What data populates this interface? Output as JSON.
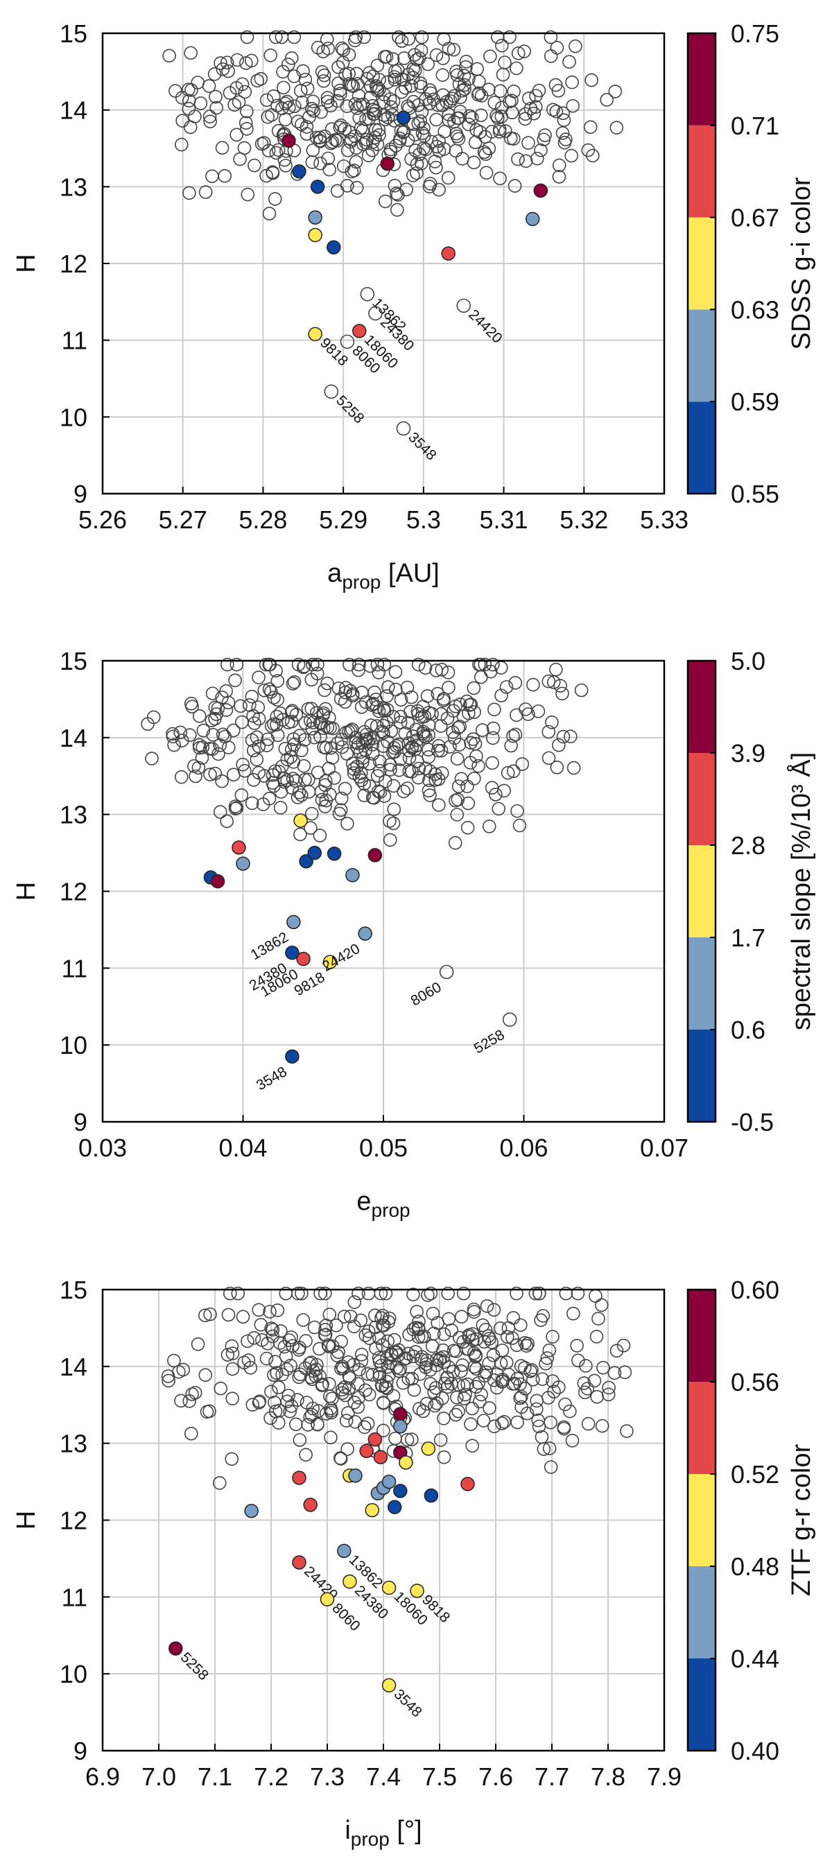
{
  "chart_data": [
    {
      "type": "scatter",
      "name": "aprop",
      "xlabel_main": "a",
      "xlabel_sub": "prop",
      "xlabel_unit": " [AU]",
      "ylabel": "H",
      "xlim": [
        5.26,
        5.33
      ],
      "ylim": [
        9,
        15
      ],
      "xticks": [
        "5.26",
        "5.27",
        "5.28",
        "5.29",
        "5.3",
        "5.31",
        "5.32",
        "5.33"
      ],
      "yticks": [
        "9",
        "10",
        "11",
        "12",
        "13",
        "14",
        "15"
      ],
      "colorbar": {
        "label": "SDSS g-i color",
        "ticks": [
          "0.55",
          "0.59",
          "0.63",
          "0.67",
          "0.71",
          "0.75"
        ],
        "colors": [
          "#0d47a1",
          "#7b9fc3",
          "#ffe95a",
          "#e54848",
          "#8b0038"
        ]
      },
      "labeled_points": [
        {
          "x": 5.2885,
          "y": 10.33,
          "label": "5258",
          "color": null
        },
        {
          "x": 5.2975,
          "y": 9.85,
          "label": "3548",
          "color": null
        },
        {
          "x": 5.2865,
          "y": 11.08,
          "label": "9818",
          "color": "#ffe95a"
        },
        {
          "x": 5.292,
          "y": 11.12,
          "label": "18060",
          "color": "#e54848"
        },
        {
          "x": 5.2905,
          "y": 10.98,
          "label": "8060",
          "color": null
        },
        {
          "x": 5.293,
          "y": 11.6,
          "label": "13862",
          "color": null
        },
        {
          "x": 5.294,
          "y": 11.35,
          "label": "24380",
          "color": null
        },
        {
          "x": 5.305,
          "y": 11.45,
          "label": "24420",
          "color": null
        }
      ],
      "colored_points": [
        {
          "x": 5.2832,
          "y": 13.6,
          "color": "#8b0038"
        },
        {
          "x": 5.2955,
          "y": 13.3,
          "color": "#8b0038"
        },
        {
          "x": 5.3146,
          "y": 12.95,
          "color": "#8b0038"
        },
        {
          "x": 5.3031,
          "y": 12.13,
          "color": "#e54848"
        },
        {
          "x": 5.2865,
          "y": 12.37,
          "color": "#ffe95a"
        },
        {
          "x": 5.2865,
          "y": 12.6,
          "color": "#7b9fc3"
        },
        {
          "x": 5.3136,
          "y": 12.58,
          "color": "#7b9fc3"
        },
        {
          "x": 5.2845,
          "y": 13.2,
          "color": "#0d47a1"
        },
        {
          "x": 5.2868,
          "y": 13.0,
          "color": "#0d47a1"
        },
        {
          "x": 5.2888,
          "y": 12.21,
          "color": "#0d47a1"
        },
        {
          "x": 5.2975,
          "y": 13.9,
          "color": "#0d47a1"
        }
      ],
      "background_points": {
        "count": 420,
        "x_range": [
          5.267,
          5.325
        ],
        "h_range": [
          12.1,
          14.95
        ],
        "h_mode": 14.0
      }
    },
    {
      "type": "scatter",
      "name": "eprop",
      "xlabel_main": "e",
      "xlabel_sub": "prop",
      "xlabel_unit": "",
      "ylabel": "H",
      "xlim": [
        0.03,
        0.07
      ],
      "ylim": [
        9,
        15
      ],
      "xticks": [
        "0.03",
        "0.04",
        "0.05",
        "0.06",
        "0.07"
      ],
      "yticks": [
        "9",
        "10",
        "11",
        "12",
        "13",
        "14",
        "15"
      ],
      "colorbar": {
        "label": "spectral slope [%/10³ Å]",
        "ticks": [
          "-0.5",
          "0.6",
          "1.7",
          "2.8",
          "3.9",
          "5.0"
        ],
        "colors": [
          "#0d47a1",
          "#7b9fc3",
          "#ffe95a",
          "#e54848",
          "#8b0038"
        ]
      },
      "labeled_points": [
        {
          "x": 0.0435,
          "y": 9.85,
          "label": "3548",
          "color": "#0d47a1"
        },
        {
          "x": 0.059,
          "y": 10.33,
          "label": "5258",
          "color": null
        },
        {
          "x": 0.0545,
          "y": 10.95,
          "label": "8060",
          "color": null
        },
        {
          "x": 0.0462,
          "y": 11.08,
          "label": "9818",
          "color": "#ffe95a"
        },
        {
          "x": 0.0443,
          "y": 11.12,
          "label": "18060",
          "color": "#e54848"
        },
        {
          "x": 0.0435,
          "y": 11.2,
          "label": "24380",
          "color": "#0d47a1"
        },
        {
          "x": 0.0436,
          "y": 11.6,
          "label": "13862",
          "color": "#7b9fc3"
        },
        {
          "x": 0.0487,
          "y": 11.45,
          "label": "24420",
          "color": "#7b9fc3"
        }
      ],
      "colored_points": [
        {
          "x": 0.0377,
          "y": 12.18,
          "color": "#0d47a1"
        },
        {
          "x": 0.0382,
          "y": 12.13,
          "color": "#8b0038"
        },
        {
          "x": 0.0397,
          "y": 12.57,
          "color": "#e54848"
        },
        {
          "x": 0.04,
          "y": 12.36,
          "color": "#7b9fc3"
        },
        {
          "x": 0.0441,
          "y": 12.92,
          "color": "#ffe95a"
        },
        {
          "x": 0.0445,
          "y": 12.39,
          "color": "#0d47a1"
        },
        {
          "x": 0.0451,
          "y": 12.5,
          "color": "#0d47a1"
        },
        {
          "x": 0.0465,
          "y": 12.49,
          "color": "#0d47a1"
        },
        {
          "x": 0.0478,
          "y": 12.21,
          "color": "#7b9fc3"
        },
        {
          "x": 0.0494,
          "y": 12.47,
          "color": "#8b0038"
        }
      ],
      "background_points": {
        "count": 430,
        "x_range": [
          0.0325,
          0.0655
        ],
        "h_range": [
          12.1,
          14.95
        ],
        "h_mode": 14.0
      }
    },
    {
      "type": "scatter",
      "name": "iprop",
      "xlabel_main": "i",
      "xlabel_sub": "prop",
      "xlabel_unit": " [°]",
      "ylabel": "H",
      "xlim": [
        6.9,
        7.9
      ],
      "ylim": [
        9,
        15
      ],
      "xticks": [
        "6.9",
        "7.0",
        "7.1",
        "7.2",
        "7.3",
        "7.4",
        "7.5",
        "7.6",
        "7.7",
        "7.8",
        "7.9"
      ],
      "yticks": [
        "9",
        "10",
        "11",
        "12",
        "13",
        "14",
        "15"
      ],
      "colorbar": {
        "label": "ZTF g-r color",
        "ticks": [
          "0.40",
          "0.44",
          "0.48",
          "0.52",
          "0.56",
          "0.60"
        ],
        "colors": [
          "#0d47a1",
          "#7b9fc3",
          "#ffe95a",
          "#e54848",
          "#8b0038"
        ]
      },
      "labeled_points": [
        {
          "x": 7.03,
          "y": 10.33,
          "label": "5258",
          "color": "#8b0038"
        },
        {
          "x": 7.41,
          "y": 9.85,
          "label": "3548",
          "color": "#ffe95a"
        },
        {
          "x": 7.25,
          "y": 11.45,
          "label": "24420",
          "color": "#e54848"
        },
        {
          "x": 7.3,
          "y": 10.97,
          "label": "8060",
          "color": "#ffe95a"
        },
        {
          "x": 7.33,
          "y": 11.6,
          "label": "13862",
          "color": "#7b9fc3"
        },
        {
          "x": 7.34,
          "y": 11.2,
          "label": "24380",
          "color": "#ffe95a"
        },
        {
          "x": 7.41,
          "y": 11.12,
          "label": "18060",
          "color": "#ffe95a"
        },
        {
          "x": 7.46,
          "y": 11.08,
          "label": "9818",
          "color": "#ffe95a"
        }
      ],
      "colored_points": [
        {
          "x": 7.43,
          "y": 13.38,
          "color": "#8b0038"
        },
        {
          "x": 7.43,
          "y": 12.88,
          "color": "#8b0038"
        },
        {
          "x": 7.385,
          "y": 13.05,
          "color": "#e54848"
        },
        {
          "x": 7.37,
          "y": 12.9,
          "color": "#e54848"
        },
        {
          "x": 7.395,
          "y": 12.82,
          "color": "#e54848"
        },
        {
          "x": 7.25,
          "y": 12.55,
          "color": "#e54848"
        },
        {
          "x": 7.27,
          "y": 12.2,
          "color": "#e54848"
        },
        {
          "x": 7.55,
          "y": 12.47,
          "color": "#e54848"
        },
        {
          "x": 7.34,
          "y": 12.58,
          "color": "#ffe95a"
        },
        {
          "x": 7.44,
          "y": 12.75,
          "color": "#ffe95a"
        },
        {
          "x": 7.48,
          "y": 12.93,
          "color": "#ffe95a"
        },
        {
          "x": 7.38,
          "y": 12.13,
          "color": "#ffe95a"
        },
        {
          "x": 7.165,
          "y": 12.12,
          "color": "#7b9fc3"
        },
        {
          "x": 7.35,
          "y": 12.58,
          "color": "#7b9fc3"
        },
        {
          "x": 7.39,
          "y": 12.35,
          "color": "#7b9fc3"
        },
        {
          "x": 7.4,
          "y": 12.42,
          "color": "#7b9fc3"
        },
        {
          "x": 7.41,
          "y": 12.5,
          "color": "#7b9fc3"
        },
        {
          "x": 7.43,
          "y": 13.22,
          "color": "#7b9fc3"
        },
        {
          "x": 7.42,
          "y": 12.17,
          "color": "#0d47a1"
        },
        {
          "x": 7.43,
          "y": 12.38,
          "color": "#0d47a1"
        },
        {
          "x": 7.485,
          "y": 12.32,
          "color": "#0d47a1"
        }
      ],
      "background_points": {
        "count": 430,
        "x_range": [
          6.99,
          7.86
        ],
        "h_range": [
          12.3,
          14.95
        ],
        "h_mode": 14.0
      }
    }
  ]
}
